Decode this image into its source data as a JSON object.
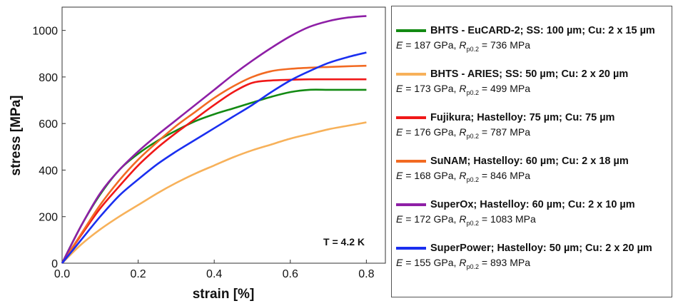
{
  "chart_data": {
    "type": "line",
    "xlabel": "strain [%]",
    "ylabel": "stress [MPa]",
    "xlim": [
      0,
      0.85
    ],
    "ylim": [
      0,
      1100
    ],
    "xticks": [
      "0.0",
      "0.2",
      "0.4",
      "0.6",
      "0.8"
    ],
    "yticks": [
      "0",
      "200",
      "400",
      "600",
      "800",
      "1000"
    ],
    "annotation": "T = 4.2 K",
    "grid": false,
    "legend_position": "right",
    "series": [
      {
        "name": "BHTS - EuCARD-2; SS: 100 µm; Cu: 2 x 15 µm",
        "props": [
          "E",
          " = 187 GPa, ",
          "R",
          "p0.2",
          " = 736 MPa"
        ],
        "color": "#138a13",
        "x": [
          0,
          0.05,
          0.1,
          0.15,
          0.2,
          0.25,
          0.3,
          0.35,
          0.4,
          0.45,
          0.5,
          0.55,
          0.6,
          0.65,
          0.7,
          0.75,
          0.8
        ],
        "y": [
          0,
          160,
          295,
          400,
          470,
          525,
          570,
          610,
          640,
          665,
          690,
          715,
          735,
          745,
          745,
          745,
          745
        ]
      },
      {
        "name": "BHTS - ARIES; SS: 50 µm; Cu: 2 x 20 µm",
        "props": [
          "E",
          " = 173 GPa, ",
          "R",
          "p0.2",
          " = 499 MPa"
        ],
        "color": "#f7b15a",
        "x": [
          0,
          0.05,
          0.1,
          0.15,
          0.2,
          0.25,
          0.3,
          0.35,
          0.4,
          0.45,
          0.5,
          0.55,
          0.6,
          0.65,
          0.7,
          0.75,
          0.8
        ],
        "y": [
          0,
          80,
          145,
          200,
          250,
          300,
          345,
          385,
          420,
          455,
          485,
          510,
          535,
          555,
          575,
          590,
          605
        ]
      },
      {
        "name": "Fujikura; Hastelloy: 75 µm; Cu: 75 µm",
        "props": [
          "E",
          " = 176 GPa, ",
          "R",
          "p0.2",
          " = 787 MPa"
        ],
        "color": "#f01818",
        "x": [
          0,
          0.05,
          0.1,
          0.15,
          0.2,
          0.25,
          0.3,
          0.35,
          0.4,
          0.45,
          0.5,
          0.55,
          0.6,
          0.65,
          0.7,
          0.75,
          0.8
        ],
        "y": [
          0,
          120,
          235,
          330,
          420,
          495,
          560,
          620,
          680,
          735,
          775,
          785,
          788,
          790,
          790,
          790,
          790
        ]
      },
      {
        "name": "SuNAM; Hastelloy: 60 µm; Cu: 2 x 18 µm",
        "props": [
          "E",
          " = 168 GPa, ",
          "R",
          "p0.2",
          " = 846 MPa"
        ],
        "color": "#f26a22",
        "x": [
          0,
          0.05,
          0.1,
          0.15,
          0.2,
          0.25,
          0.3,
          0.35,
          0.4,
          0.45,
          0.5,
          0.55,
          0.6,
          0.65,
          0.7,
          0.75,
          0.8
        ],
        "y": [
          0,
          125,
          250,
          355,
          445,
          520,
          590,
          650,
          710,
          760,
          800,
          825,
          835,
          840,
          843,
          846,
          848
        ]
      },
      {
        "name": "SuperOx; Hastelloy: 60 µm; Cu: 2 x 10 µm",
        "props": [
          "E",
          " = 172 GPa, ",
          "R",
          "p0.2",
          " = 1083 MPa"
        ],
        "color": "#8e1fa6",
        "x": [
          0,
          0.05,
          0.1,
          0.15,
          0.2,
          0.25,
          0.3,
          0.35,
          0.4,
          0.45,
          0.5,
          0.55,
          0.6,
          0.65,
          0.7,
          0.75,
          0.8
        ],
        "y": [
          0,
          160,
          300,
          400,
          480,
          550,
          615,
          680,
          745,
          810,
          870,
          925,
          975,
          1015,
          1040,
          1055,
          1062
        ]
      },
      {
        "name": "SuperPower; Hastelloy: 50 µm; Cu: 2 x 20 µm",
        "props": [
          "E",
          " = 155 GPa, ",
          "R",
          "p0.2",
          " = 893 MPa"
        ],
        "color": "#1a2ff0",
        "x": [
          0,
          0.05,
          0.1,
          0.15,
          0.2,
          0.25,
          0.3,
          0.35,
          0.4,
          0.45,
          0.5,
          0.55,
          0.6,
          0.65,
          0.7,
          0.75,
          0.8
        ],
        "y": [
          0,
          100,
          200,
          290,
          360,
          425,
          480,
          530,
          580,
          630,
          680,
          735,
          785,
          825,
          860,
          885,
          905
        ]
      }
    ]
  }
}
